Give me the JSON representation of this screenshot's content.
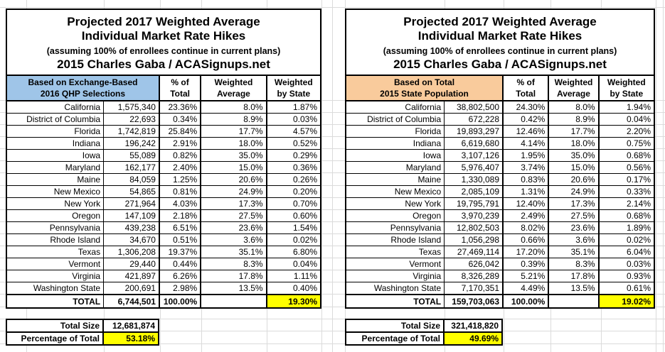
{
  "colors": {
    "highlight": "#FFFF00",
    "left_header_bg": "#9FC5E8",
    "right_header_bg": "#F9CB9C",
    "grid": "#DBDBDB",
    "border": "#000000"
  },
  "panels": [
    {
      "side": "left",
      "title_line1": "Projected 2017 Weighted Average",
      "title_line2": "Individual Market Rate Hikes",
      "subtitle": "(assuming 100% of enrollees continue in current plans)",
      "byline": "2015 Charles Gaba / ACASignups.net",
      "header": {
        "basis_line1": "Based on Exchange-Based",
        "basis_line2": "2016 QHP Selections",
        "pct_line1": "% of",
        "pct_line2": "Total",
        "wavg_line1": "Weighted",
        "wavg_line2": "Average",
        "wstate_line1": "Weighted",
        "wstate_line2": "by State"
      },
      "rows": [
        {
          "state": "California",
          "value": "1,575,340",
          "pct": "23.36%",
          "wavg": "8.0%",
          "wstate": "1.87%"
        },
        {
          "state": "District of Columbia",
          "value": "22,693",
          "pct": "0.34%",
          "wavg": "8.9%",
          "wstate": "0.03%"
        },
        {
          "state": "Florida",
          "value": "1,742,819",
          "pct": "25.84%",
          "wavg": "17.7%",
          "wstate": "4.57%"
        },
        {
          "state": "Indiana",
          "value": "196,242",
          "pct": "2.91%",
          "wavg": "18.0%",
          "wstate": "0.52%"
        },
        {
          "state": "Iowa",
          "value": "55,089",
          "pct": "0.82%",
          "wavg": "35.0%",
          "wstate": "0.29%"
        },
        {
          "state": "Maryland",
          "value": "162,177",
          "pct": "2.40%",
          "wavg": "15.0%",
          "wstate": "0.36%"
        },
        {
          "state": "Maine",
          "value": "84,059",
          "pct": "1.25%",
          "wavg": "20.6%",
          "wstate": "0.26%"
        },
        {
          "state": "New Mexico",
          "value": "54,865",
          "pct": "0.81%",
          "wavg": "24.9%",
          "wstate": "0.20%"
        },
        {
          "state": "New York",
          "value": "271,964",
          "pct": "4.03%",
          "wavg": "17.3%",
          "wstate": "0.70%"
        },
        {
          "state": "Oregon",
          "value": "147,109",
          "pct": "2.18%",
          "wavg": "27.5%",
          "wstate": "0.60%"
        },
        {
          "state": "Pennsylvania",
          "value": "439,238",
          "pct": "6.51%",
          "wavg": "23.6%",
          "wstate": "1.54%"
        },
        {
          "state": "Rhode Island",
          "value": "34,670",
          "pct": "0.51%",
          "wavg": "3.6%",
          "wstate": "0.02%"
        },
        {
          "state": "Texas",
          "value": "1,306,208",
          "pct": "19.37%",
          "wavg": "35.1%",
          "wstate": "6.80%"
        },
        {
          "state": "Vermont",
          "value": "29,440",
          "pct": "0.44%",
          "wavg": "8.3%",
          "wstate": "0.04%"
        },
        {
          "state": "Virginia",
          "value": "421,897",
          "pct": "6.26%",
          "wavg": "17.8%",
          "wstate": "1.11%"
        },
        {
          "state": "Washington State",
          "value": "200,691",
          "pct": "2.98%",
          "wavg": "13.5%",
          "wstate": "0.40%"
        }
      ],
      "total_row": {
        "label": "TOTAL",
        "value": "6,744,501",
        "pct": "100.00%",
        "wavg": "",
        "wstate": "19.30%"
      },
      "footer": {
        "size_label": "Total Size",
        "size_value": "12,681,874",
        "pct_label": "Percentage of Total",
        "pct_value": "53.18%"
      }
    },
    {
      "side": "right",
      "title_line1": "Projected 2017 Weighted Average",
      "title_line2": "Individual Market Rate Hikes",
      "subtitle": "(assuming 100% of enrollees continue in current plans)",
      "byline": "2015 Charles Gaba / ACASignups.net",
      "header": {
        "basis_line1": "Based on Total",
        "basis_line2": "2015 State Population",
        "pct_line1": "% of",
        "pct_line2": "Total",
        "wavg_line1": "Weighted",
        "wavg_line2": "Average",
        "wstate_line1": "Weighted",
        "wstate_line2": "by State"
      },
      "rows": [
        {
          "state": "California",
          "value": "38,802,500",
          "pct": "24.30%",
          "wavg": "8.0%",
          "wstate": "1.94%"
        },
        {
          "state": "District of Columbia",
          "value": "672,228",
          "pct": "0.42%",
          "wavg": "8.9%",
          "wstate": "0.04%"
        },
        {
          "state": "Florida",
          "value": "19,893,297",
          "pct": "12.46%",
          "wavg": "17.7%",
          "wstate": "2.20%"
        },
        {
          "state": "Indiana",
          "value": "6,619,680",
          "pct": "4.14%",
          "wavg": "18.0%",
          "wstate": "0.75%"
        },
        {
          "state": "Iowa",
          "value": "3,107,126",
          "pct": "1.95%",
          "wavg": "35.0%",
          "wstate": "0.68%"
        },
        {
          "state": "Maryland",
          "value": "5,976,407",
          "pct": "3.74%",
          "wavg": "15.0%",
          "wstate": "0.56%"
        },
        {
          "state": "Maine",
          "value": "1,330,089",
          "pct": "0.83%",
          "wavg": "20.6%",
          "wstate": "0.17%"
        },
        {
          "state": "New Mexico",
          "value": "2,085,109",
          "pct": "1.31%",
          "wavg": "24.9%",
          "wstate": "0.33%"
        },
        {
          "state": "New York",
          "value": "19,795,791",
          "pct": "12.40%",
          "wavg": "17.3%",
          "wstate": "2.14%"
        },
        {
          "state": "Oregon",
          "value": "3,970,239",
          "pct": "2.49%",
          "wavg": "27.5%",
          "wstate": "0.68%"
        },
        {
          "state": "Pennsylvania",
          "value": "12,802,503",
          "pct": "8.02%",
          "wavg": "23.6%",
          "wstate": "1.89%"
        },
        {
          "state": "Rhode Island",
          "value": "1,056,298",
          "pct": "0.66%",
          "wavg": "3.6%",
          "wstate": "0.02%"
        },
        {
          "state": "Texas",
          "value": "27,469,114",
          "pct": "17.20%",
          "wavg": "35.1%",
          "wstate": "6.04%"
        },
        {
          "state": "Vermont",
          "value": "626,042",
          "pct": "0.39%",
          "wavg": "8.3%",
          "wstate": "0.03%"
        },
        {
          "state": "Virginia",
          "value": "8,326,289",
          "pct": "5.21%",
          "wavg": "17.8%",
          "wstate": "0.93%"
        },
        {
          "state": "Washington State",
          "value": "7,170,351",
          "pct": "4.49%",
          "wavg": "13.5%",
          "wstate": "0.61%"
        }
      ],
      "total_row": {
        "label": "TOTAL",
        "value": "159,703,063",
        "pct": "100.00%",
        "wavg": "",
        "wstate": "19.02%"
      },
      "footer": {
        "size_label": "Total Size",
        "size_value": "321,418,820",
        "pct_label": "Percentage of Total",
        "pct_value": "49.69%"
      }
    }
  ]
}
